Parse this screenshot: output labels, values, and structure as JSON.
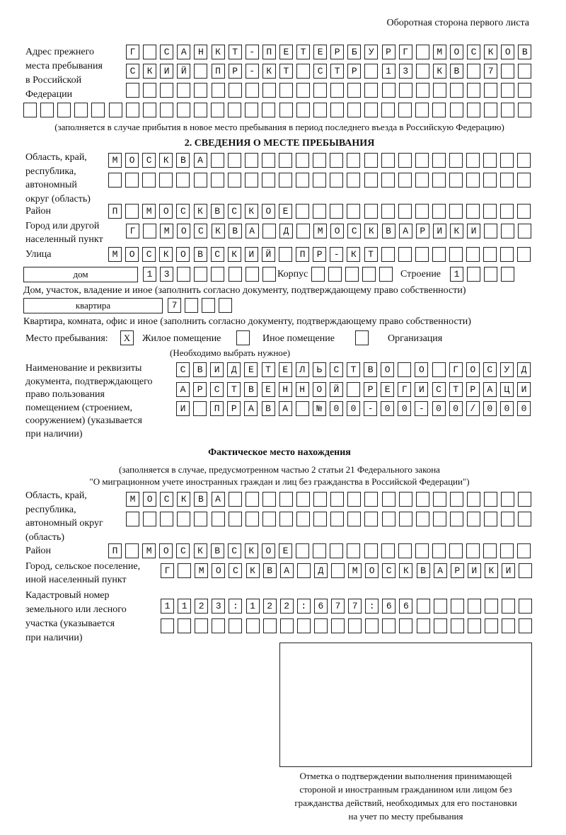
{
  "header": {
    "page_label": "Оборотная сторона первого листа"
  },
  "previous_address": {
    "label": [
      "Адрес прежнего",
      "места пребывания",
      "в Российской",
      "Федерации"
    ],
    "rows": [
      "Г САНКТ-ПЕТЕРБУРГ МОСКОВ",
      "СКИЙ ПР-КТ СТР 13 КВ 7",
      "",
      ""
    ],
    "note": "(заполняется в случае прибытия в новое место пребывания в период последнего въезда в Российскую Федерацию)"
  },
  "section2": {
    "title": "2. СВЕДЕНИЯ О МЕСТЕ ПРЕБЫВАНИЯ",
    "region": {
      "label": [
        "Область, край,",
        "республика,",
        "автономный",
        "округ (область)"
      ],
      "rows": [
        "МОСКВА",
        ""
      ]
    },
    "district": {
      "label": "Район",
      "value": "П МОСКВСКОЕ"
    },
    "city": {
      "label": [
        "Город или другой",
        "населенный пункт"
      ],
      "value": "Г МОСКВА Д МОСКВАРИКИ"
    },
    "street": {
      "label": "Улица",
      "value": "МОСКОВСКИЙ ПР-КТ"
    },
    "house": {
      "type": "дом",
      "number": "13",
      "korpus_label": "Корпус",
      "korpus": "",
      "building_label": "Строение",
      "building": "1",
      "note": "Дом, участок, владение и иное (заполнить согласно документу, подтверждающему право собственности)"
    },
    "apartment": {
      "type": "квартира",
      "number": "7",
      "note": "Квартира, комната, офис и иное (заполнить согласно документу, подтверждающему право собственности)"
    },
    "stay_place": {
      "label": "Место пребывания:",
      "options": [
        {
          "label": "Жилое помещение",
          "mark": "X"
        },
        {
          "label": "Иное помещение",
          "mark": ""
        },
        {
          "label": "Организация",
          "mark": ""
        }
      ],
      "note": "(Необходимо выбрать нужное)"
    },
    "document": {
      "label": [
        "Наименование и реквизиты",
        "документа, подтверждающего",
        "право пользования",
        "помещением (строением,",
        "сооружением) (указывается",
        "при наличии)"
      ],
      "rows": [
        "СВИДЕТЕЛЬСТВО О ГОСУД",
        "АРСТВЕННОЙ РЕГИСТРАЦИ",
        "И ПРАВА №00-00-00/000"
      ]
    }
  },
  "actual": {
    "title": "Фактическое место нахождения",
    "note": [
      "(заполняется в случае, предусмотренном частью 2 статьи 21 Федерального закона",
      "\"О миграционном учете иностранных граждан и лиц без гражданства в Российской Федерации\")"
    ],
    "region": {
      "label": [
        "Область, край,",
        "республика,",
        "автономный округ",
        "(область)"
      ],
      "rows": [
        "МОСКВА",
        ""
      ]
    },
    "district": {
      "label": "Район",
      "value": "П МОСКВСКОЕ"
    },
    "city": {
      "label": [
        "Город, сельское поселение,",
        "иной населенный пункт"
      ],
      "value": "Г МОСКВА Д МОСКВАРИКИ"
    },
    "cadastral": {
      "label": [
        "Кадастровый номер",
        "земельного или лесного",
        "участка (указывается",
        "при наличии)"
      ],
      "rows": [
        "1123:122:677:66",
        ""
      ]
    }
  },
  "confirmation": {
    "caption": [
      "Отметка о подтверждении выполнения принимающей",
      "стороной и иностранным гражданином или лицом без",
      "гражданства действий, необходимых для его постановки",
      "на учет по месту пребывания"
    ]
  }
}
